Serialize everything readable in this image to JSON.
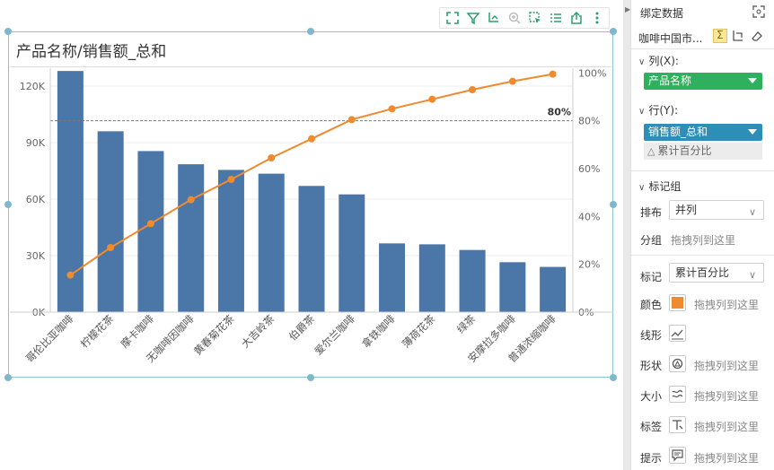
{
  "chart": {
    "title": "产品名称/销售额_总和",
    "threshold_label": "80%"
  },
  "chart_data": {
    "type": "bar",
    "combo_line": "line",
    "categories": [
      "哥伦比亚咖啡",
      "柠檬花茶",
      "摩卡咖啡",
      "无咖啡因咖啡",
      "黄春菊花茶",
      "大吉岭茶",
      "伯爵茶",
      "爱尔兰咖啡",
      "拿铁咖啡",
      "薄荷花茶",
      "绿茶",
      "安摩拉多咖啡",
      "普通浓缩咖啡"
    ],
    "series": [
      {
        "name": "销售额_总和",
        "axis": "left",
        "type": "bar",
        "values": [
          128000,
          96000,
          85500,
          78500,
          75500,
          73500,
          67000,
          62500,
          36500,
          36000,
          33000,
          26500,
          24000
        ]
      },
      {
        "name": "累计百分比",
        "axis": "right",
        "type": "line",
        "values": [
          15.5,
          27,
          37,
          47,
          55.5,
          64.5,
          72.5,
          80.5,
          85,
          89,
          93,
          96.5,
          99.5
        ]
      }
    ],
    "yticks_left": [
      "0K",
      "30K",
      "60K",
      "90K",
      "120K"
    ],
    "yticks_right": [
      "0%",
      "20%",
      "40%",
      "60%",
      "80%",
      "100%"
    ],
    "ylim_left": [
      0,
      129500
    ],
    "ylim_right": [
      0,
      102
    ],
    "threshold_right": 80,
    "bar_color": "#4a76a8",
    "line_color": "#ef8a2f",
    "grid": true
  },
  "panel": {
    "title": "绑定数据",
    "dataset": "咖啡中国市...",
    "columns_label": "列(X):",
    "column_pill": "产品名称",
    "rows_label": "行(Y):",
    "row_pill": "销售额_总和",
    "row_sub_pill": "累计百分比",
    "mark_group": "标记组",
    "layout_label": "排布",
    "layout_value": "并列",
    "group_label": "分组",
    "group_hint": "拖拽列到这里",
    "mark_label": "标记",
    "mark_value": "累计百分比",
    "color_label": "颜色",
    "color_hint": "拖拽列到这里",
    "line_label": "线形",
    "shape_label": "形状",
    "shape_hint": "拖拽列到这里",
    "size_label": "大小",
    "size_hint": "拖拽列到这里",
    "tag_label": "标签",
    "tag_hint": "拖拽列到这里",
    "tip_label": "提示",
    "tip_hint": "拖拽列到这里",
    "col_pill_color": "#2fb05f",
    "row_pill_color": "#2d8fb8"
  }
}
